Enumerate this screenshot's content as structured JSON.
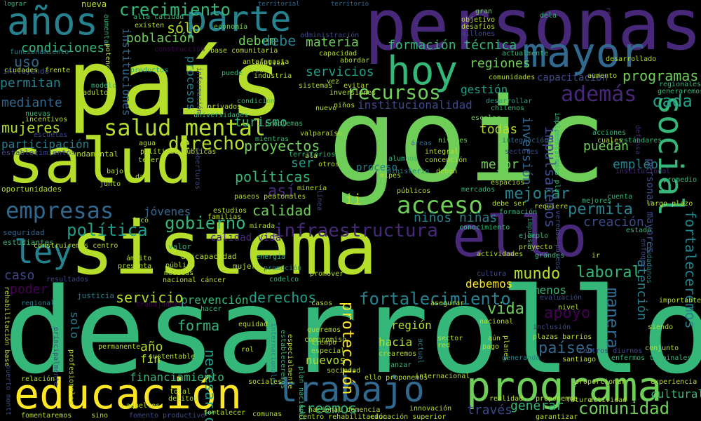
{
  "palette": [
    "#fde725",
    "#b5de2b",
    "#6ece58",
    "#35b779",
    "#1f9e89",
    "#26828e",
    "#31688e",
    "#3e4989",
    "#482878",
    "#440154"
  ],
  "words": [
    {
      "text": "goic",
      "color": "#6ece58"
    },
    {
      "text": "desarrollo",
      "color": "#35b779"
    },
    {
      "text": "sistema",
      "color": "#b5de2b"
    },
    {
      "text": "país",
      "color": "#b5de2b"
    },
    {
      "text": "personas",
      "color": "#482878"
    },
    {
      "text": "salud",
      "color": "#b5de2b"
    },
    {
      "text": "ello",
      "color": "#482878"
    },
    {
      "text": "programa",
      "color": "#6ece58"
    },
    {
      "text": "educación",
      "color": "#fde725"
    },
    {
      "text": "mayor",
      "color": "#31688e"
    },
    {
      "text": "trabajo",
      "color": "#31688e"
    },
    {
      "text": "social",
      "color": "#35b779"
    },
    {
      "text": "hoy",
      "color": "#35b779"
    },
    {
      "text": "años",
      "color": "#26828e"
    },
    {
      "text": "parte",
      "color": "#26828e"
    },
    {
      "text": "ley",
      "color": "#26828e"
    },
    {
      "text": "salud mental",
      "color": "#b5de2b"
    },
    {
      "text": "empresas",
      "color": "#31688e"
    },
    {
      "text": "acceso",
      "color": "#6ece58"
    },
    {
      "text": "además",
      "color": "#482878"
    },
    {
      "text": "recursos",
      "color": "#6ece58"
    },
    {
      "text": "infraestructura",
      "color": "#482878"
    },
    {
      "text": "derecho",
      "color": "#b5de2b"
    },
    {
      "text": "crecimiento",
      "color": "#35b779"
    },
    {
      "text": "política",
      "color": "#1f9e89"
    },
    {
      "text": "gobierno",
      "color": "#35b779"
    },
    {
      "text": "comunidad",
      "color": "#6ece58"
    },
    {
      "text": "fortalecimiento",
      "color": "#26828e"
    },
    {
      "text": "permita",
      "color": "#26828e"
    },
    {
      "text": "cada",
      "color": "#1f9e89"
    },
    {
      "text": "fortaleceremos",
      "color": "#26828e"
    },
    {
      "text": "manera",
      "color": "#31688e"
    },
    {
      "text": "mujeres",
      "color": "#b5de2b"
    },
    {
      "text": "impulsaremos",
      "color": "#3e4989"
    },
    {
      "text": "vida",
      "color": "#6ece58"
    },
    {
      "text": "apoyo",
      "color": "#440154"
    },
    {
      "text": "laboral",
      "color": "#35b779"
    },
    {
      "text": "países",
      "color": "#31688e"
    },
    {
      "text": "mundo",
      "color": "#b5de2b"
    },
    {
      "text": "mejorar",
      "color": "#26828e"
    },
    {
      "text": "forma",
      "color": "#35b779"
    },
    {
      "text": "necesario",
      "color": "#1f9e89"
    },
    {
      "text": "protección",
      "color": "#fde725"
    },
    {
      "text": "creemos",
      "color": "#35b779"
    },
    {
      "text": "calidad",
      "color": "#6ece58"
    },
    {
      "text": "servicio",
      "color": "#b5de2b"
    },
    {
      "text": "derechos",
      "color": "#1f9e89"
    },
    {
      "text": "políticas",
      "color": "#35b779"
    },
    {
      "text": "proyectos",
      "color": "#6ece58"
    },
    {
      "text": "programas",
      "color": "#6ece58"
    },
    {
      "text": "servicios",
      "color": "#1f9e89"
    },
    {
      "text": "uso",
      "color": "#31688e"
    },
    {
      "text": "así",
      "color": "#482878"
    },
    {
      "text": "materia",
      "color": "#6ece58"
    },
    {
      "text": "deben",
      "color": "#6ece58"
    },
    {
      "text": "formación técnica",
      "color": "#35b779"
    },
    {
      "text": "regiones",
      "color": "#6ece58"
    },
    {
      "text": "turismo",
      "color": "#35b779"
    },
    {
      "text": "debe",
      "color": "#26828e"
    },
    {
      "text": "sólo",
      "color": "#b5de2b"
    },
    {
      "text": "población",
      "color": "#6ece58"
    },
    {
      "text": "condiciones",
      "color": "#35b779"
    },
    {
      "text": "permitan",
      "color": "#26828e"
    },
    {
      "text": "mediante",
      "color": "#31688e"
    },
    {
      "text": "participación",
      "color": "#26828e"
    },
    {
      "text": "jóvenes",
      "color": "#31688e"
    },
    {
      "text": "creación",
      "color": "#3e4989"
    },
    {
      "text": "puedan",
      "color": "#6ece58"
    },
    {
      "text": "empleo",
      "color": "#26828e"
    },
    {
      "text": "atención",
      "color": "#26828e"
    },
    {
      "text": "todas",
      "color": "#b5de2b"
    },
    {
      "text": "mejor",
      "color": "#6ece58"
    },
    {
      "text": "inversión",
      "color": "#31688e"
    },
    {
      "text": "institucionalidad",
      "color": "#3e4989"
    },
    {
      "text": "gestión",
      "color": "#1f9e89"
    },
    {
      "text": "niños niñas",
      "color": "#26828e"
    },
    {
      "text": "debemos",
      "color": "#fde725"
    },
    {
      "text": "región",
      "color": "#b5de2b"
    },
    {
      "text": "hacia",
      "color": "#b5de2b"
    },
    {
      "text": "nuevos",
      "color": "#b5de2b"
    },
    {
      "text": "generar",
      "color": "#35b779"
    },
    {
      "text": "través",
      "color": "#3e4989"
    },
    {
      "text": "financiamiento",
      "color": "#35b779"
    },
    {
      "text": "prevención",
      "color": "#35b779"
    },
    {
      "text": "año",
      "color": "#b5de2b"
    },
    {
      "text": "caso",
      "color": "#3e4989"
    },
    {
      "text": "poder",
      "color": "#440154"
    },
    {
      "text": "ser",
      "color": "#1f9e89"
    },
    {
      "text": "ii",
      "color": "#b5de2b"
    },
    {
      "text": "menos",
      "color": "#35b779"
    },
    {
      "text": "cultural",
      "color": "#35b779"
    },
    {
      "text": "solo",
      "color": "#26828e"
    },
    {
      "text": "fin",
      "color": "#b5de2b"
    },
    {
      "text": "procesos",
      "color": "#26828e"
    },
    {
      "text": "instituciones",
      "color": "#31688e"
    },
    {
      "text": "nueva",
      "color": "#b5de2b"
    },
    {
      "text": "lograr",
      "color": "#35b779"
    },
    {
      "text": "territorial",
      "color": "#31688e"
    },
    {
      "text": "territorio",
      "color": "#31688e"
    },
    {
      "text": "calidad vida",
      "color": "#482878"
    },
    {
      "text": "proceso",
      "color": "#26828e"
    },
    {
      "text": "capacitación",
      "color": "#3e4989"
    },
    {
      "text": "personas mayores",
      "color": "#3e4989"
    },
    {
      "text": "justicia",
      "color": "#26828e"
    },
    {
      "text": "valor",
      "color": "#35b779"
    },
    {
      "text": "discapacidad",
      "color": "#b5de2b"
    },
    {
      "text": "mujer",
      "color": "#b5de2b"
    },
    {
      "text": "estudiantes",
      "color": "#35b779"
    },
    {
      "text": "seguridad",
      "color": "#31688e"
    },
    {
      "text": "incluyendo",
      "color": "#3e4989"
    },
    {
      "text": "oportunidades",
      "color": "#b5de2b"
    },
    {
      "text": "establecimientos",
      "color": "#3e4989"
    },
    {
      "text": "fundamental",
      "color": "#b5de2b"
    },
    {
      "text": "nuevas",
      "color": "#35b779"
    },
    {
      "text": "incentivos",
      "color": "#b5de2b"
    },
    {
      "text": "escuelas",
      "color": "#3e4989"
    },
    {
      "text": "ciudades",
      "color": "#b5de2b"
    },
    {
      "text": "frente",
      "color": "#b5de2b"
    },
    {
      "text": "funcionamiento",
      "color": "#26828e"
    },
    {
      "text": "productos",
      "color": "#1f9e89"
    },
    {
      "text": "adultos",
      "color": "#b5de2b"
    },
    {
      "text": "modelo",
      "color": "#35b779"
    },
    {
      "text": "aumentar",
      "color": "#35b779"
    },
    {
      "text": "alta calidad",
      "color": "#35b779"
    },
    {
      "text": "existen",
      "color": "#b5de2b"
    },
    {
      "text": "economía",
      "color": "#6ece58"
    },
    {
      "text": "administración",
      "color": "#3e4989"
    },
    {
      "text": "capacidad",
      "color": "#b5de2b"
    },
    {
      "text": "abordar",
      "color": "#b5de2b"
    },
    {
      "text": "construcción",
      "color": "#440154"
    },
    {
      "text": "base comunitaria",
      "color": "#b5de2b"
    },
    {
      "text": "objetivo",
      "color": "#b5de2b"
    },
    {
      "text": "desafíos",
      "color": "#b5de2b"
    },
    {
      "text": "millones",
      "color": "#3e4989"
    },
    {
      "text": "actualmente",
      "color": "#35b779"
    },
    {
      "text": "gran",
      "color": "#6ece58"
    },
    {
      "text": "dela",
      "color": "#35b779"
    },
    {
      "text": "comunidades",
      "color": "#b5de2b"
    },
    {
      "text": "aumento",
      "color": "#b5de2b"
    },
    {
      "text": "desarrollar",
      "color": "#1f9e89"
    },
    {
      "text": "chilenos",
      "color": "#35b779"
    },
    {
      "text": "regionales",
      "color": "#35b779"
    },
    {
      "text": "generaremos",
      "color": "#35b779"
    },
    {
      "text": "reforma",
      "color": "#482878"
    },
    {
      "text": "integral",
      "color": "#b5de2b"
    },
    {
      "text": "concepción",
      "color": "#b5de2b"
    },
    {
      "text": "niveles",
      "color": "#6ece58"
    },
    {
      "text": "integración",
      "color": "#31688e"
    },
    {
      "text": "sectores",
      "color": "#3e4989"
    },
    {
      "text": "áreas",
      "color": "#31688e"
    },
    {
      "text": "escolar",
      "color": "#6ece58"
    },
    {
      "text": "implementaremos plan",
      "color": "#35b779"
    },
    {
      "text": "acciones",
      "color": "#35b779"
    },
    {
      "text": "cuales",
      "color": "#b5de2b"
    },
    {
      "text": "estándares",
      "color": "#35b779"
    },
    {
      "text": "institucional",
      "color": "#482878"
    },
    {
      "text": "promedio",
      "color": "#35b779"
    },
    {
      "text": "defensa",
      "color": "#482878"
    },
    {
      "text": "ministerio",
      "color": "#26828e"
    },
    {
      "text": "públicos",
      "color": "#b5de2b"
    },
    {
      "text": "mercados",
      "color": "#35b779"
    },
    {
      "text": "espacios",
      "color": "#b5de2b"
    },
    {
      "text": "deben",
      "color": "#b5de2b"
    },
    {
      "text": "requiere",
      "color": "#b5de2b"
    },
    {
      "text": "formación",
      "color": "#35b779"
    },
    {
      "text": "debe ser",
      "color": "#b5de2b"
    },
    {
      "text": "impulsar",
      "color": "#1f9e89"
    },
    {
      "text": "ejemplo",
      "color": "#35b779"
    },
    {
      "text": "conocimiento",
      "color": "#35b779"
    },
    {
      "text": "proyecto",
      "color": "#b5de2b"
    },
    {
      "text": "actividades",
      "color": "#b5de2b"
    },
    {
      "text": "grandes",
      "color": "#35b779"
    },
    {
      "text": "mejores",
      "color": "#35b779"
    },
    {
      "text": "cuenta",
      "color": "#35b779"
    },
    {
      "text": "largo plazo",
      "color": "#b5de2b"
    },
    {
      "text": "estado",
      "color": "#35b779"
    },
    {
      "text": "enfoque",
      "color": "#3e4989"
    },
    {
      "text": "ciudadanos",
      "color": "#26828e"
    },
    {
      "text": "ir",
      "color": "#b5de2b"
    },
    {
      "text": "veredas paseos",
      "color": "#3e4989"
    },
    {
      "text": "valparaíso",
      "color": "#b5de2b"
    },
    {
      "text": "mientras",
      "color": "#35b779"
    },
    {
      "text": "territorios",
      "color": "#35b779"
    },
    {
      "text": "ala",
      "color": "#b5de2b"
    },
    {
      "text": "otros",
      "color": "#b5de2b"
    },
    {
      "text": "mipes",
      "color": "#b5de2b"
    },
    {
      "text": "alumnos",
      "color": "#35b779"
    },
    {
      "text": "problemas",
      "color": "#35b779"
    },
    {
      "text": "universidades",
      "color": "#35b779"
    },
    {
      "text": "agua",
      "color": "#b5de2b"
    },
    {
      "text": "políticas públicas",
      "color": "#b5de2b"
    },
    {
      "text": "tener",
      "color": "#b5de2b"
    },
    {
      "text": "dar",
      "color": "#b5de2b"
    },
    {
      "text": "bajo",
      "color": "#b5de2b"
    },
    {
      "text": "junto",
      "color": "#b5de2b"
    },
    {
      "text": "coberturas",
      "color": "#3e4989"
    },
    {
      "text": "estudios",
      "color": "#b5de2b"
    },
    {
      "text": "familias",
      "color": "#b5de2b"
    },
    {
      "text": "minería",
      "color": "#b5de2b"
    },
    {
      "text": "paseos peatonales",
      "color": "#b5de2b"
    },
    {
      "text": "mirada",
      "color": "#b5de2b"
    },
    {
      "text": "foco",
      "color": "#b5de2b"
    },
    {
      "text": "construiremos centro",
      "color": "#b5de2b"
    },
    {
      "text": "ámbito",
      "color": "#b5de2b"
    },
    {
      "text": "presenta",
      "color": "#b5de2b"
    },
    {
      "text": "público",
      "color": "#b5de2b"
    },
    {
      "text": "medidas",
      "color": "#b5de2b"
    },
    {
      "text": "nacional cáncer",
      "color": "#b5de2b"
    },
    {
      "text": "energía",
      "color": "#35b779"
    },
    {
      "text": "promoción",
      "color": "#26828e"
    },
    {
      "text": "codelco",
      "color": "#35b779"
    },
    {
      "text": "promover",
      "color": "#b5de2b"
    },
    {
      "text": "resultados",
      "color": "#3e4989"
    },
    {
      "text": "regional",
      "color": "#26828e"
    },
    {
      "text": "trabajadores",
      "color": "#440154"
    },
    {
      "text": "hacer",
      "color": "#35b779"
    },
    {
      "text": "equidad",
      "color": "#b5de2b"
    },
    {
      "text": "casos",
      "color": "#b5de2b"
    },
    {
      "text": "internacionales",
      "color": "#26828e"
    },
    {
      "text": "estableceremos",
      "color": "#35b779"
    },
    {
      "text": "especialmente",
      "color": "#b5de2b"
    },
    {
      "text": "queremos",
      "color": "#b5de2b"
    },
    {
      "text": "tiempo",
      "color": "#b5de2b"
    },
    {
      "text": "especial",
      "color": "#b5de2b"
    },
    {
      "text": "sector",
      "color": "#b5de2b"
    },
    {
      "text": "red",
      "color": "#b5de2b"
    },
    {
      "text": "actual",
      "color": "#26828e"
    },
    {
      "text": "crearemos",
      "color": "#b5de2b"
    },
    {
      "text": "avanzar",
      "color": "#35b779"
    },
    {
      "text": "nacional",
      "color": "#b5de2b"
    },
    {
      "text": "pago",
      "color": "#b5de2b"
    },
    {
      "text": "aún",
      "color": "#b5de2b"
    },
    {
      "text": "planes",
      "color": "#b5de2b"
    },
    {
      "text": "generando",
      "color": "#26828e"
    },
    {
      "text": "realidad",
      "color": "#b5de2b"
    },
    {
      "text": "nivel",
      "color": "#b5de2b"
    },
    {
      "text": "evaluación",
      "color": "#3e4989"
    },
    {
      "text": "asegurar",
      "color": "#b5de2b"
    },
    {
      "text": "inclusión",
      "color": "#3e4989"
    },
    {
      "text": "plazas barrios",
      "color": "#b5de2b"
    },
    {
      "text": "santiago",
      "color": "#b5de2b"
    },
    {
      "text": "centros diurnos",
      "color": "#3e4989"
    },
    {
      "text": "enfermos terminales",
      "color": "#35b779"
    },
    {
      "text": "siendo",
      "color": "#b5de2b"
    },
    {
      "text": "conjunto",
      "color": "#b5de2b"
    },
    {
      "text": "importante",
      "color": "#b5de2b"
    },
    {
      "text": "experiencia",
      "color": "#b5de2b"
    },
    {
      "text": "sociedad",
      "color": "#b5de2b"
    },
    {
      "text": "plan nacional",
      "color": "#35b779"
    },
    {
      "text": "ello proponemos",
      "color": "#b5de2b"
    },
    {
      "text": "internacional",
      "color": "#b5de2b"
    },
    {
      "text": "sociales",
      "color": "#b5de2b"
    },
    {
      "text": "relación",
      "color": "#b5de2b"
    },
    {
      "text": "permanente",
      "color": "#b5de2b"
    },
    {
      "text": "sustentable",
      "color": "#b5de2b"
    },
    {
      "text": "profesionales",
      "color": "#b5de2b"
    },
    {
      "text": "rehabilitación base",
      "color": "#b5de2b"
    },
    {
      "text": "principalmente",
      "color": "#3e4989"
    },
    {
      "text": "puerto montt",
      "color": "#3e4989"
    },
    {
      "text": "fomentaremos",
      "color": "#b5de2b"
    },
    {
      "text": "total",
      "color": "#b5de2b"
    },
    {
      "text": "delitos",
      "color": "#b5de2b"
    },
    {
      "text": "aquellos",
      "color": "#b5de2b"
    },
    {
      "text": "sino",
      "color": "#b5de2b"
    },
    {
      "text": "fomento productivo",
      "color": "#3e4989"
    },
    {
      "text": "fortalecer",
      "color": "#b5de2b"
    },
    {
      "text": "comunas",
      "color": "#b5de2b"
    },
    {
      "text": "centro rehabilitación",
      "color": "#b5de2b"
    },
    {
      "text": "educación superior",
      "color": "#b5de2b"
    },
    {
      "text": "innovación",
      "color": "#b5de2b"
    },
    {
      "text": "compromiso",
      "color": "#b5de2b"
    },
    {
      "text": "rol",
      "color": "#b5de2b"
    },
    {
      "text": "proporcionar",
      "color": "#b5de2b"
    },
    {
      "text": "garantizar",
      "color": "#b5de2b"
    },
    {
      "text": "futuro",
      "color": "#b5de2b"
    },
    {
      "text": "actividad",
      "color": "#b5de2b"
    },
    {
      "text": "antofagasta",
      "color": "#b5de2b"
    },
    {
      "text": "condición",
      "color": "#35b779"
    },
    {
      "text": "crear",
      "color": "#b5de2b"
    },
    {
      "text": "industria",
      "color": "#b5de2b"
    },
    {
      "text": "información",
      "color": "#3e4989"
    },
    {
      "text": "vez",
      "color": "#b5de2b"
    },
    {
      "text": "inversiones",
      "color": "#b5de2b"
    },
    {
      "text": "evitar",
      "color": "#b5de2b"
    },
    {
      "text": "potenciar",
      "color": "#b5de2b"
    },
    {
      "text": "puede",
      "color": "#35b779"
    },
    {
      "text": "sistemas",
      "color": "#b5de2b"
    },
    {
      "text": "niños",
      "color": "#b5de2b"
    },
    {
      "text": "privados",
      "color": "#b5de2b"
    },
    {
      "text": "nuevo",
      "color": "#b5de2b"
    },
    {
      "text": "línea",
      "color": "#3e4989"
    },
    {
      "text": "pública",
      "color": "#b5de2b"
    },
    {
      "text": "proponemos",
      "color": "#b5de2b"
    },
    {
      "text": "cultura",
      "color": "#3e4989"
    },
    {
      "text": "desarrollado",
      "color": "#b5de2b"
    },
    {
      "text": "nacional demencia",
      "color": "#b5de2b"
    }
  ]
}
